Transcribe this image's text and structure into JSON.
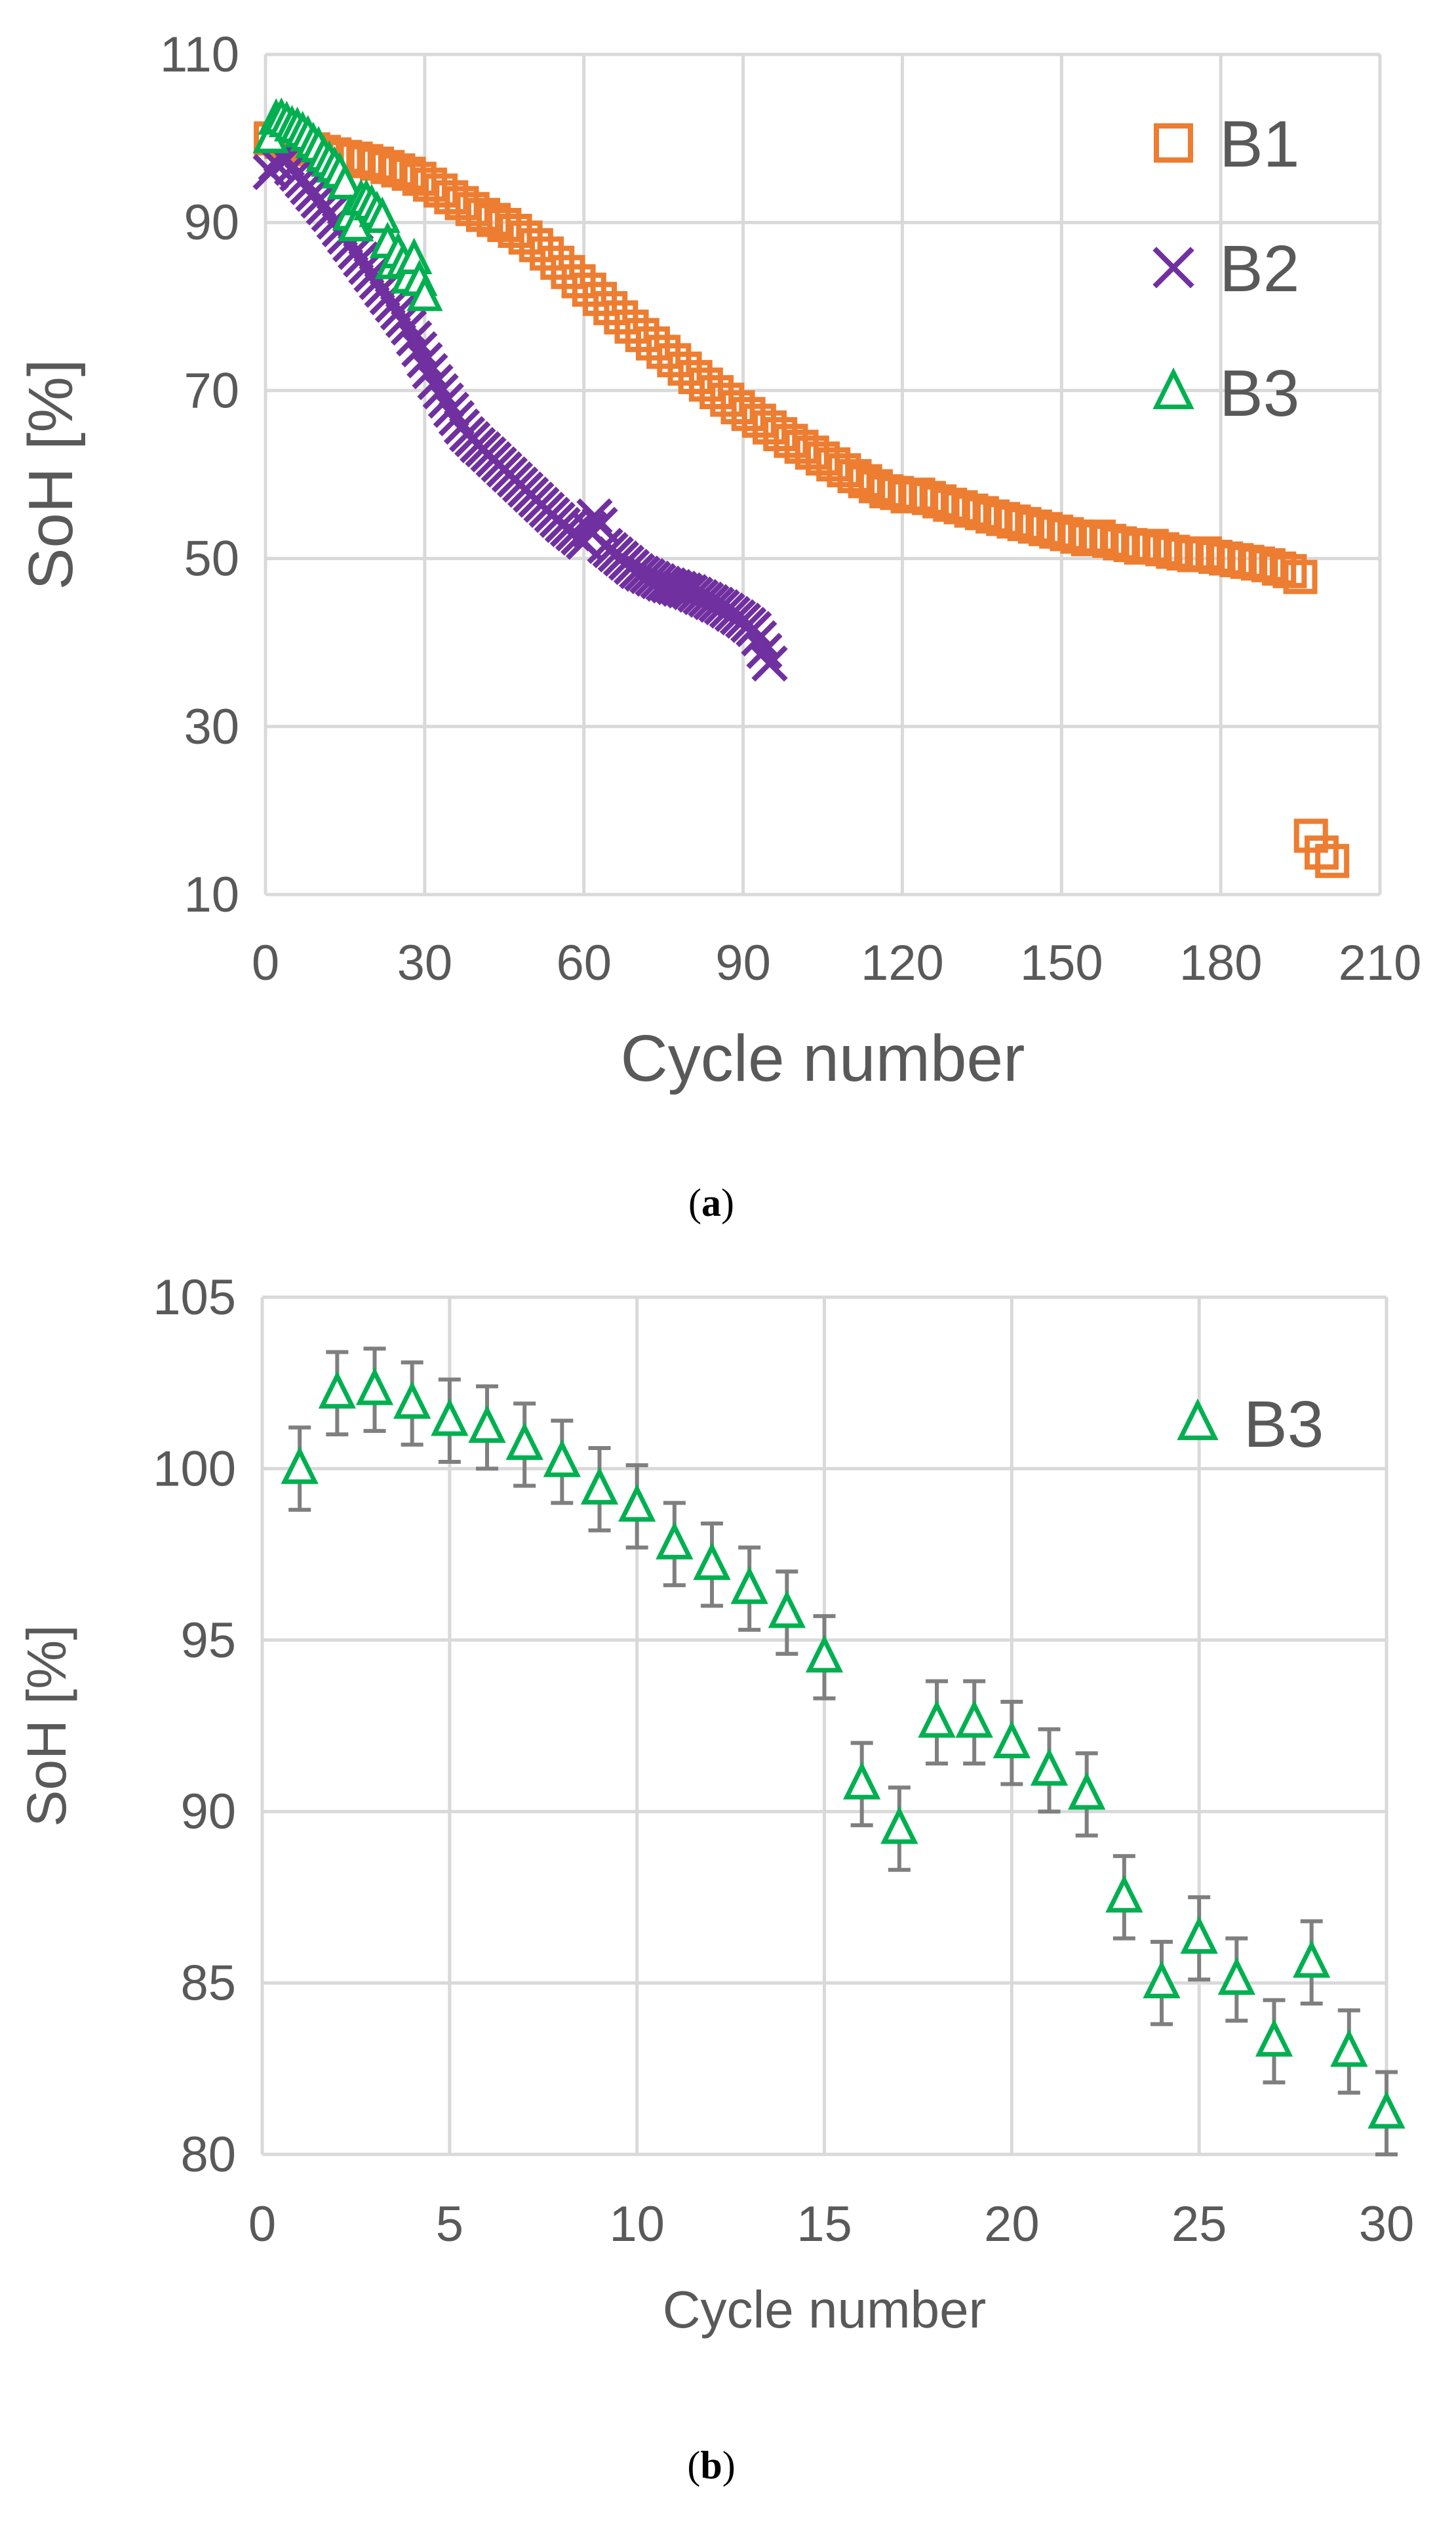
{
  "colors": {
    "b1": "#ED7D31",
    "b2": "#7030A0",
    "b3": "#00B050",
    "grid": "#D9D9D9",
    "axis_text": "#595959",
    "error_bar": "#7F7F7F"
  },
  "chart_data": [
    {
      "panel": "a",
      "caption": "a",
      "type": "scatter",
      "xlabel": "Cycle number",
      "ylabel": "SoH [%]",
      "xlim": [
        0,
        210
      ],
      "ylim": [
        10,
        110
      ],
      "x_ticks": [
        0,
        30,
        60,
        90,
        120,
        150,
        180,
        210
      ],
      "y_ticks": [
        10,
        30,
        50,
        70,
        90,
        110
      ],
      "legend_position": "top-right",
      "grid": true,
      "series": [
        {
          "name": "B1",
          "marker": "square",
          "color": "#ED7D31",
          "x": [
            1,
            3,
            5,
            7,
            9,
            11,
            13,
            15,
            17,
            19,
            21,
            23,
            25,
            27,
            29,
            31,
            33,
            35,
            37,
            39,
            41,
            43,
            45,
            47,
            49,
            51,
            53,
            55,
            57,
            59,
            61,
            63,
            65,
            67,
            69,
            71,
            73,
            75,
            77,
            79,
            81,
            83,
            85,
            87,
            89,
            91,
            93,
            95,
            97,
            99,
            101,
            103,
            105,
            107,
            109,
            111,
            113,
            115,
            117,
            119,
            121,
            123,
            125,
            127,
            129,
            131,
            133,
            135,
            137,
            139,
            141,
            143,
            145,
            147,
            149,
            151,
            153,
            155,
            157,
            159,
            161,
            163,
            165,
            167,
            169,
            171,
            173,
            175,
            177,
            179,
            181,
            183,
            185,
            187,
            189,
            191,
            193,
            195,
            197,
            199,
            201
          ],
          "y": [
            100,
            99.6,
            99.3,
            99,
            98.7,
            98.4,
            98.1,
            97.8,
            97.6,
            97.3,
            97,
            96.6,
            96.2,
            95.8,
            95.2,
            94.5,
            93.8,
            93,
            92.3,
            91.6,
            90.9,
            90.3,
            89.7,
            89,
            88.2,
            87.3,
            86.3,
            85.2,
            84.1,
            83,
            82,
            80.9,
            79.8,
            78.7,
            77.6,
            76.6,
            75.6,
            74.6,
            73.6,
            72.6,
            71.6,
            70.7,
            69.8,
            68.9,
            68,
            67.2,
            66.4,
            65.6,
            64.8,
            64,
            63.3,
            62.6,
            61.9,
            61.2,
            60.5,
            59.8,
            59.2,
            58.6,
            58,
            57.8,
            57.4,
            57.6,
            57.2,
            56.8,
            56.4,
            56.1,
            55.7,
            55.4,
            55,
            54.7,
            54.4,
            54.1,
            53.8,
            53.5,
            53.2,
            52.9,
            52.6,
            52.3,
            52.6,
            52.1,
            51.8,
            51.6,
            51.3,
            51.5,
            51.1,
            50.8,
            50.6,
            50.4,
            50.6,
            50.2,
            50,
            49.8,
            49.6,
            49.4,
            49.2,
            48.8,
            48.5,
            47.8,
            17,
            15,
            14
          ]
        },
        {
          "name": "B2",
          "marker": "x",
          "color": "#7030A0",
          "x": [
            1,
            2,
            3,
            4,
            5,
            6,
            7,
            8,
            9,
            10,
            11,
            12,
            13,
            14,
            15,
            16,
            17,
            18,
            19,
            20,
            21,
            22,
            23,
            24,
            25,
            26,
            27,
            28,
            29,
            30,
            31,
            32,
            33,
            34,
            35,
            36,
            37,
            38,
            39,
            40,
            41,
            42,
            43,
            44,
            45,
            46,
            47,
            48,
            49,
            50,
            51,
            52,
            53,
            54,
            55,
            56,
            57,
            58,
            59,
            60,
            61,
            62,
            63,
            64,
            65,
            66,
            67,
            68,
            69,
            70,
            71,
            72,
            73,
            74,
            75,
            76,
            77,
            78,
            79,
            80,
            81,
            82,
            83,
            84,
            85,
            86,
            87,
            88,
            89,
            90,
            91,
            92,
            93,
            94,
            95
          ],
          "y": [
            96,
            97,
            98,
            97.5,
            96.5,
            95.8,
            95,
            94.2,
            93.4,
            92.6,
            91.8,
            91,
            90.1,
            89.2,
            88.3,
            87.4,
            86.5,
            85.6,
            84.7,
            83.8,
            82.9,
            82,
            81.1,
            80.2,
            79.3,
            78.4,
            77.5,
            76.2,
            74.9,
            73.6,
            72.3,
            71,
            69.9,
            68.8,
            67.7,
            66.7,
            65.7,
            64.8,
            64.2,
            63.5,
            63,
            62.4,
            61.8,
            61.2,
            60.6,
            60,
            59.4,
            58.8,
            58.2,
            57.6,
            57,
            56.4,
            55.8,
            55.2,
            54.6,
            54,
            53.5,
            53,
            52.5,
            52,
            53.5,
            55,
            54,
            51.5,
            51,
            50.5,
            50,
            49.5,
            49,
            48.5,
            48.2,
            47.9,
            47.6,
            47.3,
            47,
            46.8,
            46.6,
            46.4,
            46.2,
            46,
            45.7,
            45.4,
            45.1,
            44.8,
            44.5,
            44.2,
            43.8,
            43.4,
            43,
            42.6,
            42.1,
            41.6,
            40.5,
            39,
            37.5
          ]
        },
        {
          "name": "B3",
          "marker": "triangle",
          "color": "#00B050",
          "x": [
            1,
            2,
            3,
            4,
            5,
            6,
            7,
            8,
            9,
            10,
            11,
            12,
            13,
            14,
            15,
            16,
            17,
            18,
            19,
            20,
            21,
            22,
            23,
            24,
            25,
            26,
            27,
            28,
            29,
            30
          ],
          "y": [
            100,
            102.2,
            102.3,
            101.9,
            101.4,
            101.2,
            100.7,
            100.2,
            99.4,
            98.9,
            97.8,
            97.2,
            96.5,
            95.8,
            94.5,
            90.8,
            89.5,
            92.6,
            92.6,
            92,
            91.2,
            90.5,
            87.5,
            85,
            86.3,
            85.1,
            83.3,
            85.6,
            83,
            81.2
          ]
        }
      ]
    },
    {
      "panel": "b",
      "caption": "b",
      "type": "scatter",
      "xlabel": "Cycle number",
      "ylabel": "SoH [%]",
      "xlim": [
        0,
        30
      ],
      "ylim": [
        80,
        105
      ],
      "x_ticks": [
        0,
        5,
        10,
        15,
        20,
        25,
        30
      ],
      "y_ticks": [
        80,
        85,
        90,
        95,
        100,
        105
      ],
      "legend_position": "top-right",
      "grid": true,
      "series": [
        {
          "name": "B3",
          "marker": "triangle",
          "color": "#00B050",
          "x": [
            1,
            2,
            3,
            4,
            5,
            6,
            7,
            8,
            9,
            10,
            11,
            12,
            13,
            14,
            15,
            16,
            17,
            18,
            19,
            20,
            21,
            22,
            23,
            24,
            25,
            26,
            27,
            28,
            29,
            30
          ],
          "y": [
            100,
            102.2,
            102.3,
            101.9,
            101.4,
            101.2,
            100.7,
            100.2,
            99.4,
            98.9,
            97.8,
            97.2,
            96.5,
            95.8,
            94.5,
            90.8,
            89.5,
            92.6,
            92.6,
            92,
            91.2,
            90.5,
            87.5,
            85,
            86.3,
            85.1,
            83.3,
            85.6,
            83,
            81.2
          ],
          "error": 1.2
        }
      ]
    }
  ]
}
